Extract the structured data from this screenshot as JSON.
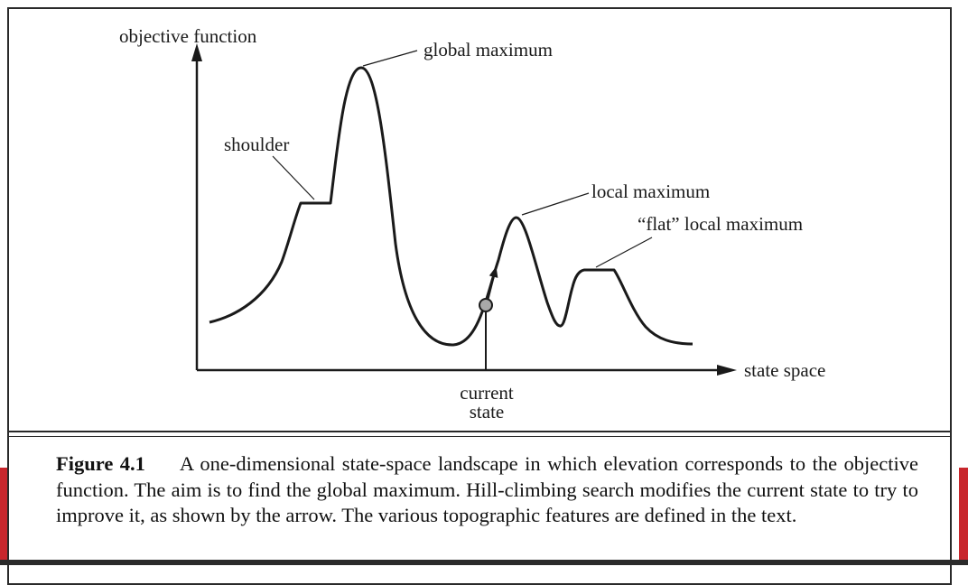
{
  "colors": {
    "accent_red": "#c8262c",
    "ink": "#1a1a1a",
    "marker_fill": "#a9a9a9"
  },
  "diagram": {
    "y_axis_label": "objective function",
    "x_axis_label": "state space",
    "labels": {
      "global_maximum": "global maximum",
      "shoulder": "shoulder",
      "local_maximum": "local maximum",
      "flat_local_maximum": "“flat” local maximum",
      "current_state_line1": "current",
      "current_state_line2": "state"
    }
  },
  "caption": {
    "label": "Figure 4.1",
    "text": "A one-dimensional state-space landscape in which elevation corresponds to the objective function. The aim is to find the global maximum. Hill-climbing search modifies the current state to try to improve it, as shown by the arrow. The various topographic features are defined in the text."
  }
}
